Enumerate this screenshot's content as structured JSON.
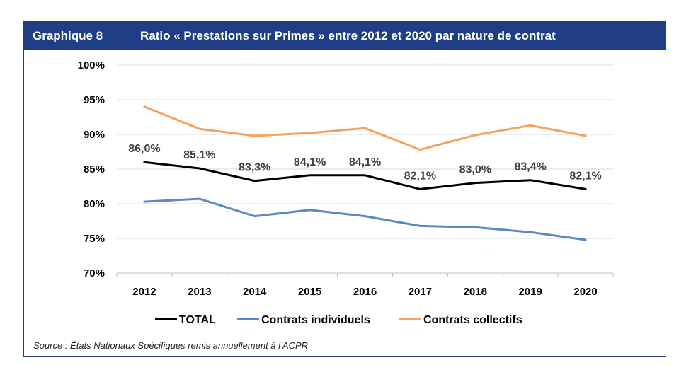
{
  "header": {
    "label": "Graphique 8",
    "title": "Ratio « Prestations sur Primes » entre 2012 et 2020 par nature de contrat"
  },
  "source": "Source : États Nationaux Spécifiques remis annuellement à l’ACPR",
  "chart_data": {
    "type": "line",
    "categories": [
      "2012",
      "2013",
      "2014",
      "2015",
      "2016",
      "2017",
      "2018",
      "2019",
      "2020"
    ],
    "ylim": [
      70,
      100
    ],
    "yticks": [
      70,
      75,
      80,
      85,
      90,
      95,
      100
    ],
    "ytick_labels": [
      "70%",
      "75%",
      "80%",
      "85%",
      "90%",
      "95%",
      "100%"
    ],
    "grid": true,
    "legend": "bottom",
    "series": [
      {
        "name": "TOTAL",
        "color": "#000000",
        "values": [
          86.0,
          85.1,
          83.3,
          84.1,
          84.1,
          82.1,
          83.0,
          83.4,
          82.1
        ],
        "labels": [
          "86,0%",
          "85,1%",
          "83,3%",
          "84,1%",
          "84,1%",
          "82,1%",
          "83,0%",
          "83,4%",
          "82,1%"
        ]
      },
      {
        "name": "Contrats individuels",
        "color": "#5a8ac6",
        "values": [
          80.3,
          80.7,
          78.2,
          79.1,
          78.2,
          76.8,
          76.6,
          75.9,
          74.8
        ]
      },
      {
        "name": "Contrats collectifs",
        "color": "#f5a25d",
        "values": [
          94.0,
          90.8,
          89.8,
          90.2,
          90.9,
          87.8,
          89.9,
          91.3,
          89.8
        ]
      }
    ]
  }
}
